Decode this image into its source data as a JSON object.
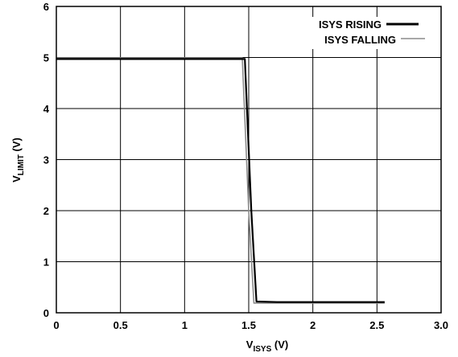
{
  "chart_data": {
    "type": "line",
    "xlabel": {
      "main": "V",
      "sub": "ISYS",
      "unit": " (V)"
    },
    "ylabel": {
      "main": "V",
      "sub": "LIMIT",
      "unit": " (V)"
    },
    "xlim": [
      0,
      3.0
    ],
    "ylim": [
      0,
      6
    ],
    "x_ticks": [
      0,
      0.5,
      1,
      1.5,
      2,
      2.5,
      3.0
    ],
    "x_tick_labels": [
      "0",
      "0.5",
      "1",
      "1.5",
      "2",
      "2.5",
      "3.0"
    ],
    "y_ticks": [
      0,
      1,
      2,
      3,
      4,
      5,
      6
    ],
    "y_tick_labels": [
      "0",
      "1",
      "2",
      "3",
      "4",
      "5",
      "6"
    ],
    "grid": true,
    "legend_position": "top-right",
    "series": [
      {
        "name": "ISYS RISING",
        "color": "#000000",
        "x": [
          0,
          1.47,
          1.52,
          1.56,
          1.72,
          2.56
        ],
        "y": [
          4.97,
          4.97,
          2.0,
          0.22,
          0.21,
          0.21
        ]
      },
      {
        "name": "ISYS FALLING",
        "color": "#8c8c8c",
        "x": [
          0,
          1.45,
          1.5,
          1.54,
          1.7,
          2.56
        ],
        "y": [
          4.99,
          4.99,
          2.0,
          0.19,
          0.19,
          0.19
        ]
      }
    ]
  }
}
